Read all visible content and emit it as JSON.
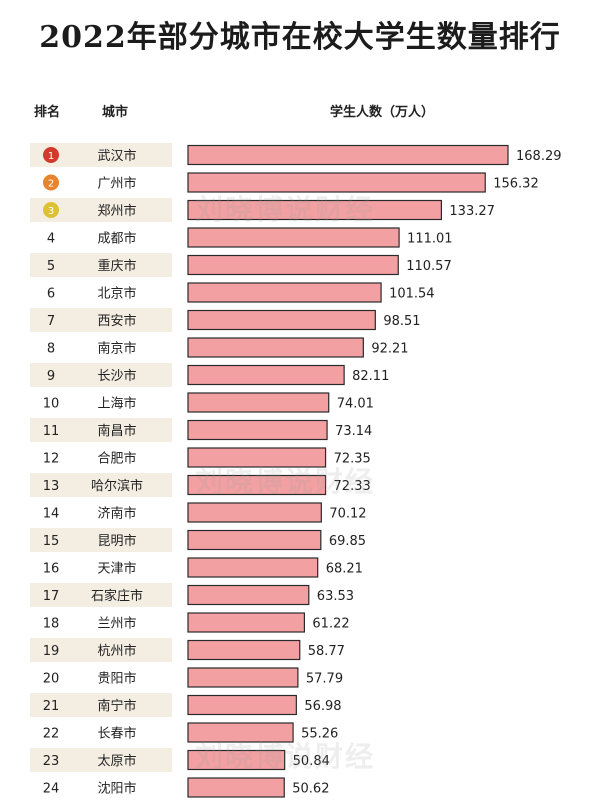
{
  "title": "2022年部分城市在校大学生数量排行",
  "headers": {
    "rank": "排名",
    "city": "城市",
    "value": "学生人数（万人）"
  },
  "watermark": "刘晓博说财经",
  "colors": {
    "bar": "#f2a0a2",
    "bar_border": "#2a2a2a",
    "row_band": "#f3ede2",
    "gold": "#dcc233",
    "orange": "#e8832e",
    "red": "#d23a2e"
  },
  "chart_data": {
    "type": "bar",
    "orientation": "horizontal",
    "title": "2022年部分城市在校大学生数量排行",
    "xlabel": "学生人数（万人）",
    "ylabel": "城市",
    "xlim": [
      0,
      170
    ],
    "grid": false,
    "categories": [
      "武汉市",
      "广州市",
      "郑州市",
      "成都市",
      "重庆市",
      "北京市",
      "西安市",
      "南京市",
      "长沙市",
      "上海市",
      "南昌市",
      "合肥市",
      "哈尔滨市",
      "济南市",
      "昆明市",
      "天津市",
      "石家庄市",
      "兰州市",
      "杭州市",
      "贵阳市",
      "南宁市",
      "长春市",
      "太原市",
      "沈阳市"
    ],
    "ranks": [
      "1",
      "2",
      "3",
      "4",
      "5",
      "6",
      "7",
      "8",
      "9",
      "10",
      "11",
      "12",
      "13",
      "14",
      "15",
      "16",
      "17",
      "18",
      "19",
      "20",
      "21",
      "22",
      "23",
      "24"
    ],
    "values": [
      168.29,
      156.32,
      133.27,
      111.01,
      110.57,
      101.54,
      98.51,
      92.21,
      82.11,
      74.01,
      73.14,
      72.35,
      72.33,
      70.12,
      69.85,
      68.21,
      63.53,
      61.22,
      58.77,
      57.79,
      56.98,
      55.26,
      50.84,
      50.62
    ],
    "value_labels": [
      "168.29",
      "156.32",
      "133.27",
      "111.01",
      "110.57",
      "101.54",
      "98.51",
      "92.21",
      "82.11",
      "74.01",
      "73.14",
      "72.35",
      "72.33",
      "70.12",
      "69.85",
      "68.21",
      "63.53",
      "61.22",
      "58.77",
      "57.79",
      "56.98",
      "55.26",
      "50.84",
      "50.62"
    ]
  }
}
